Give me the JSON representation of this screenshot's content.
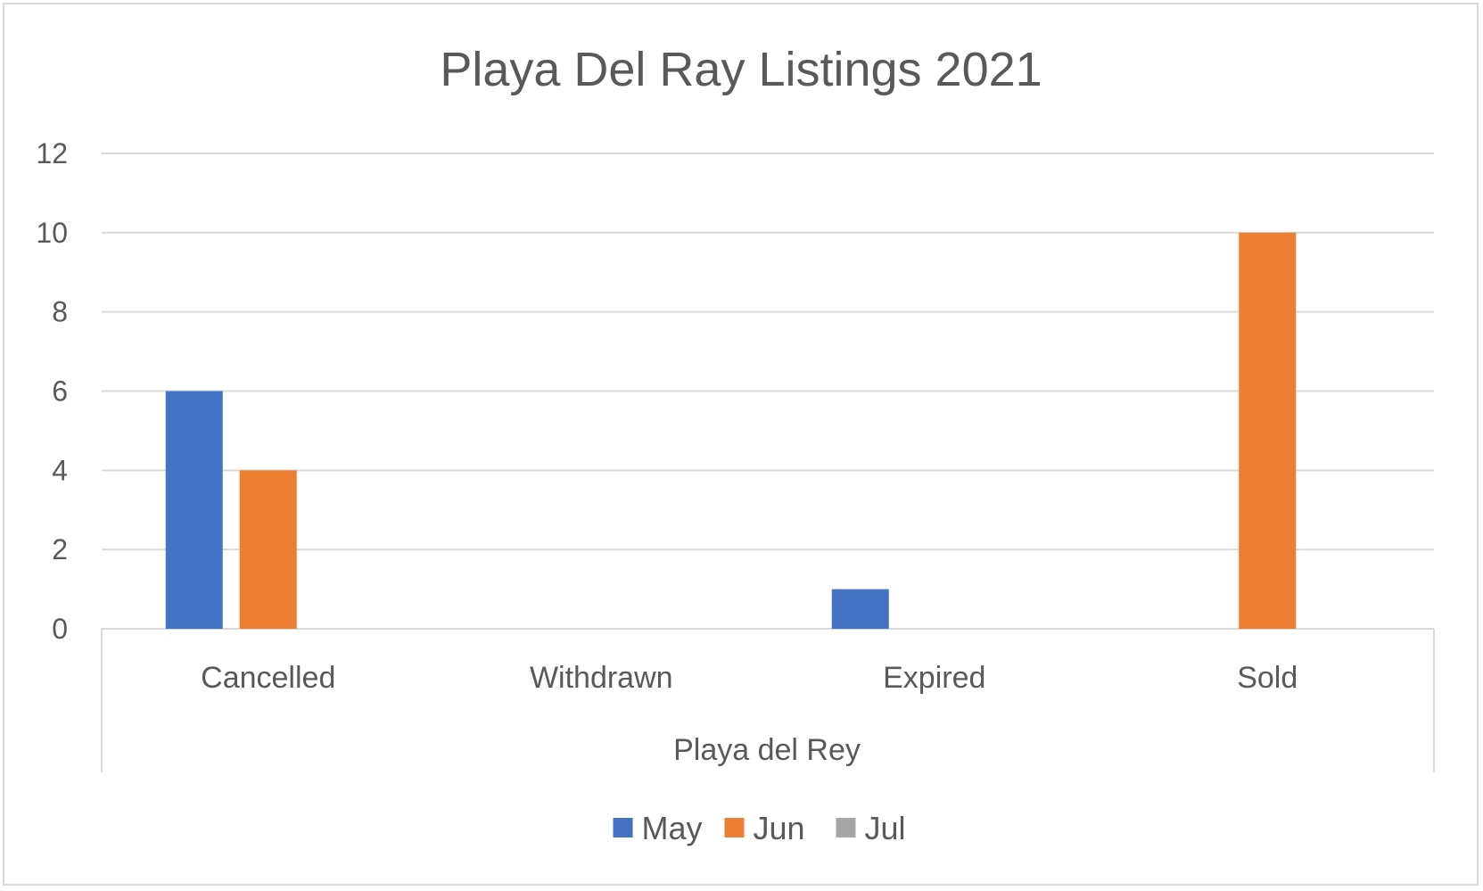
{
  "chart_data": {
    "type": "bar",
    "title": "Playa Del Ray Listings 2021",
    "group_label": "Playa del Rey",
    "categories": [
      "Cancelled",
      "Withdrawn",
      "Expired",
      "Sold"
    ],
    "series": [
      {
        "name": "May",
        "color": "#4472c4",
        "values": [
          6,
          0,
          1,
          0
        ]
      },
      {
        "name": "Jun",
        "color": "#ed7d31",
        "values": [
          4,
          0,
          0,
          10
        ]
      },
      {
        "name": "Jul",
        "color": "#a5a5a5",
        "values": [
          0,
          0,
          0,
          0
        ]
      }
    ],
    "ylim": [
      0,
      12
    ],
    "yticks": [
      0,
      2,
      4,
      6,
      8,
      10,
      12
    ],
    "grid": true,
    "legend_position": "bottom"
  }
}
